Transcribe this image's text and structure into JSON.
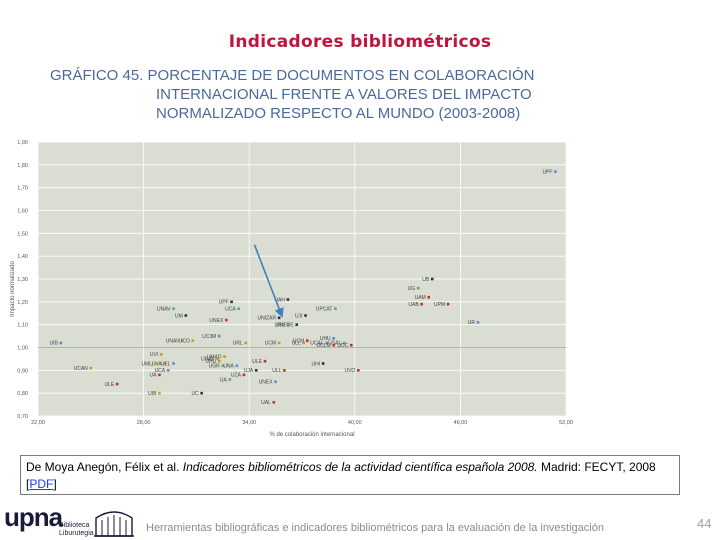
{
  "slide": {
    "title": "Indicadores bibliométricos",
    "page_number": "44",
    "footer": "Herramientas bibliográficas e indicadores bibliométricos para la evaluación de la investigación"
  },
  "citation": {
    "authors": "De Moya Anegón, Félix et al.",
    "work": "Indicadores bibliométricos de la actividad científica española 2008.",
    "publisher": "Madrid: FECYT, 2008",
    "link_text": "PDF"
  },
  "logo": {
    "text": "upna",
    "sub1": "Biblioteca",
    "sub2": "Liburutegia"
  },
  "colors": {
    "title": "#c0143c",
    "heading": "#4a6a9a",
    "plot_bg": "#d9ddd2",
    "arrow": "#3f7fc0"
  },
  "chart_data": {
    "type": "scatter",
    "title_line1": "GRÁFICO 45. PORCENTAJE DE DOCUMENTOS EN COLABORACIÓN",
    "title_line2": "INTERNACIONAL FRENTE A VALORES DEL IMPACTO",
    "title_line3": "NORMALIZADO RESPECTO AL MUNDO (2003-2008)",
    "xlabel": "% de colaboración internacional",
    "ylabel": "Impacto normalizado",
    "xlim": [
      22,
      52
    ],
    "ylim": [
      0.7,
      1.9
    ],
    "x_ticks": [
      "22,00",
      "28,00",
      "34,00",
      "40,00",
      "46,00",
      "52,00"
    ],
    "x_tick_values": [
      22,
      28,
      34,
      40,
      46,
      52
    ],
    "y_ticks": [
      "0,70",
      "0,80",
      "0,90",
      "1,00",
      "1,10",
      "1,20",
      "1,30",
      "1,40",
      "1,50",
      "1,60",
      "1,70",
      "1,80",
      "1,90"
    ],
    "y_tick_values": [
      0.7,
      0.8,
      0.9,
      1.0,
      1.1,
      1.2,
      1.3,
      1.4,
      1.5,
      1.6,
      1.7,
      1.8,
      1.9
    ],
    "grid": true,
    "points": [
      {
        "label": "UPF",
        "x": 51.4,
        "y": 1.77,
        "color": "#5a8ad0"
      },
      {
        "label": "UB",
        "x": 44.4,
        "y": 1.3,
        "color": "#333333"
      },
      {
        "label": "UG",
        "x": 43.6,
        "y": 1.26,
        "color": "#5ab05a"
      },
      {
        "label": "UAM",
        "x": 44.2,
        "y": 1.22,
        "color": "#c03030"
      },
      {
        "label": "UAB",
        "x": 43.8,
        "y": 1.19,
        "color": "#c03030"
      },
      {
        "label": "UPM",
        "x": 45.3,
        "y": 1.19,
        "color": "#c03030"
      },
      {
        "label": "UR",
        "x": 47.0,
        "y": 1.11,
        "color": "#5a8ad0"
      },
      {
        "label": "UAH",
        "x": 36.2,
        "y": 1.21,
        "color": "#333333"
      },
      {
        "label": "UPCAT",
        "x": 38.9,
        "y": 1.17,
        "color": "#5ab05a"
      },
      {
        "label": "UPF",
        "x": 33.0,
        "y": 1.2,
        "color": "#333333"
      },
      {
        "label": "UCA",
        "x": 33.4,
        "y": 1.17,
        "color": "#5ab05a"
      },
      {
        "label": "UNAV",
        "x": 29.7,
        "y": 1.17,
        "color": "#5ab05a"
      },
      {
        "label": "UM",
        "x": 30.4,
        "y": 1.14,
        "color": "#333333"
      },
      {
        "label": "UNEX",
        "x": 32.7,
        "y": 1.12,
        "color": "#c03030"
      },
      {
        "label": "UNIZAR",
        "x": 35.7,
        "y": 1.13,
        "color": "#333333"
      },
      {
        "label": "UJI",
        "x": 37.2,
        "y": 1.14,
        "color": "#333333"
      },
      {
        "label": "UNEDE",
        "x": 36.7,
        "y": 1.1,
        "color": "#333333"
      },
      {
        "label": "URV",
        "x": 36.2,
        "y": 1.1,
        "color": "#5a8ad0"
      },
      {
        "label": "UNAV",
        "x": 30.2,
        "y": 1.03,
        "color": "#c0a020"
      },
      {
        "label": "UCO",
        "x": 30.8,
        "y": 1.03,
        "color": "#c0a020"
      },
      {
        "label": "UC3M",
        "x": 32.3,
        "y": 1.05,
        "color": "#5a8ad0"
      },
      {
        "label": "URL",
        "x": 33.8,
        "y": 1.02,
        "color": "#c0a020"
      },
      {
        "label": "UCM",
        "x": 35.7,
        "y": 1.02,
        "color": "#c0a020"
      },
      {
        "label": "UCM",
        "x": 37.3,
        "y": 1.03,
        "color": "#c03030"
      },
      {
        "label": "ULL",
        "x": 37.1,
        "y": 1.02,
        "color": "#c0a020"
      },
      {
        "label": "UCAL",
        "x": 38.4,
        "y": 1.02,
        "color": "#5a8ad0"
      },
      {
        "label": "USAL",
        "x": 39.4,
        "y": 1.02,
        "color": "#5ab05a"
      },
      {
        "label": "UCLM",
        "x": 38.8,
        "y": 1.01,
        "color": "#c03030"
      },
      {
        "label": "UHU",
        "x": 38.8,
        "y": 1.04,
        "color": "#5a8ad0"
      },
      {
        "label": "UDC",
        "x": 39.8,
        "y": 1.01,
        "color": "#c03030"
      },
      {
        "label": "UMAD",
        "x": 32.6,
        "y": 0.96,
        "color": "#c0a020"
      },
      {
        "label": "UNAV",
        "x": 32.2,
        "y": 0.95,
        "color": "#c0a020"
      },
      {
        "label": "UHU",
        "x": 32.3,
        "y": 0.94,
        "color": "#c0a020"
      },
      {
        "label": "UVI",
        "x": 29.0,
        "y": 0.97,
        "color": "#c0a020"
      },
      {
        "label": "UVA",
        "x": 29.2,
        "y": 0.93,
        "color": "#c0a020"
      },
      {
        "label": "UMU",
        "x": 28.7,
        "y": 0.93,
        "color": "#c0a020"
      },
      {
        "label": "UEL",
        "x": 29.7,
        "y": 0.93,
        "color": "#5a8ad0"
      },
      {
        "label": "UCA",
        "x": 29.4,
        "y": 0.9,
        "color": "#5a8ad0"
      },
      {
        "label": "UGR",
        "x": 32.5,
        "y": 0.92,
        "color": "#5ab05a"
      },
      {
        "label": "UJA",
        "x": 34.4,
        "y": 0.9,
        "color": "#333333"
      },
      {
        "label": "ULE",
        "x": 34.9,
        "y": 0.94,
        "color": "#c03030"
      },
      {
        "label": "UNA",
        "x": 33.3,
        "y": 0.92,
        "color": "#5a8ad0"
      },
      {
        "label": "UZA",
        "x": 33.7,
        "y": 0.88,
        "color": "#c03030"
      },
      {
        "label": "UA",
        "x": 28.9,
        "y": 0.88,
        "color": "#c03030"
      },
      {
        "label": "ULL",
        "x": 36.0,
        "y": 0.9,
        "color": "#c03030"
      },
      {
        "label": "UHI",
        "x": 38.2,
        "y": 0.93,
        "color": "#333333"
      },
      {
        "label": "UVO",
        "x": 40.2,
        "y": 0.9,
        "color": "#c03030"
      },
      {
        "label": "UCAN",
        "x": 25.0,
        "y": 0.91,
        "color": "#c0a020"
      },
      {
        "label": "ULE",
        "x": 26.5,
        "y": 0.84,
        "color": "#c03030"
      },
      {
        "label": "UIB",
        "x": 28.9,
        "y": 0.8,
        "color": "#c0a020"
      },
      {
        "label": "UC",
        "x": 31.3,
        "y": 0.8,
        "color": "#333333"
      },
      {
        "label": "UA",
        "x": 32.9,
        "y": 0.86,
        "color": "#5ab05a"
      },
      {
        "label": "UNEX",
        "x": 35.5,
        "y": 0.85,
        "color": "#5a8ad0"
      },
      {
        "label": "UAL",
        "x": 35.4,
        "y": 0.76,
        "color": "#c03030"
      },
      {
        "label": "UIB",
        "x": 23.3,
        "y": 1.02,
        "color": "#5a8ad0"
      }
    ],
    "arrow": {
      "from": [
        34.3,
        1.45
      ],
      "to": [
        35.8,
        1.15
      ]
    }
  }
}
